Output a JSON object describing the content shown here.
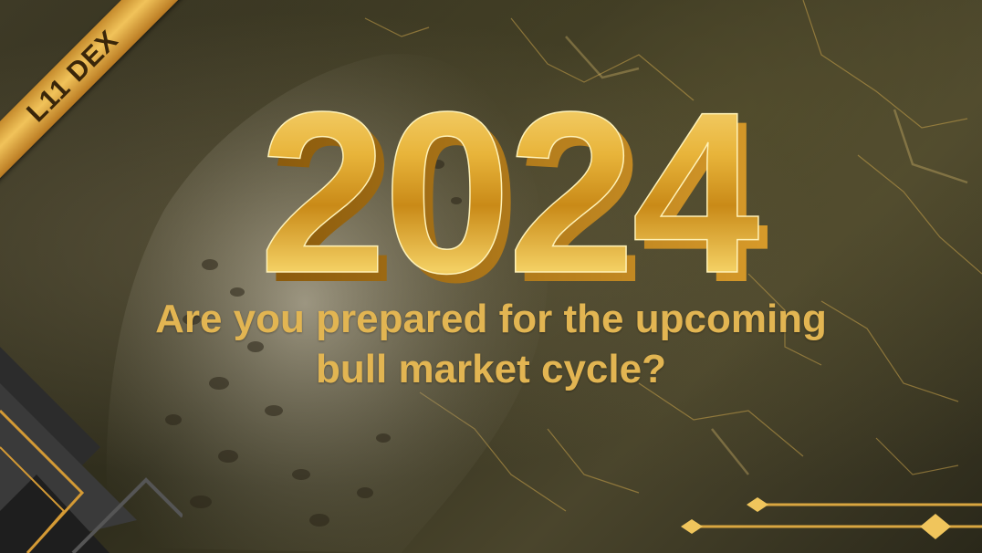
{
  "badge": {
    "label": "L11 DEX"
  },
  "headline": {
    "year": "2024"
  },
  "tagline": {
    "line1": "Are you prepared for the upcoming",
    "line2": "bull market cycle?"
  },
  "colors": {
    "gold": "#e2b552",
    "background": "#3e3a26",
    "ribbon": "#f1c35a"
  },
  "icons": {
    "decor_left": "geometric-corner-pattern",
    "decor_right": "gold-divider-lines"
  }
}
